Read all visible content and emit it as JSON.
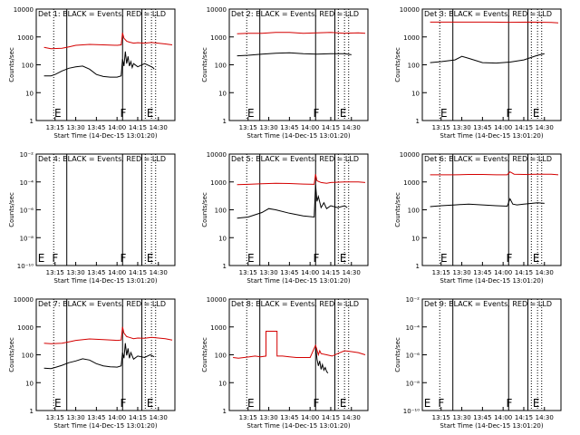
{
  "figure": {
    "xlabel": "Start Time (14-Dec-15 13:01:20)",
    "ylabel": "Counts/sec",
    "xticks": [
      "13:15",
      "13:30",
      "13:45",
      "14:00",
      "14:15",
      "14:30"
    ],
    "colors": {
      "events": "#000000",
      "lld": "#d40000"
    }
  },
  "chart_data": [
    {
      "type": "line",
      "title": "Det 1: BLACK = Events, RED = LLD",
      "yscale": "log",
      "ylim": [
        1,
        10000
      ],
      "yticks": [
        "1",
        "10",
        "100",
        "1000",
        "10000"
      ],
      "xlim": [
        "13:01:20",
        "14:42:00"
      ],
      "solid_lines": [
        "13:23:30",
        "14:04:00",
        "14:18:00"
      ],
      "dotted_lines": [
        "13:14:00",
        "14:20:30",
        "14:25:00",
        "14:28:00"
      ],
      "markers": [
        {
          "label": "E",
          "x": "13:17:00"
        },
        {
          "label": "F",
          "x": "14:04:30"
        },
        {
          "label": "E",
          "x": "14:24:00"
        }
      ],
      "series": [
        {
          "key": "events",
          "x": [
            "13:07",
            "13:12",
            "13:15",
            "13:20",
            "13:25",
            "13:30",
            "13:35",
            "13:40",
            "13:45",
            "13:50",
            "13:55",
            "14:00",
            "14:03",
            "14:04",
            "14:05",
            "14:06",
            "14:07",
            "14:08",
            "14:09",
            "14:10",
            "14:11",
            "14:12",
            "14:15",
            "14:20",
            "14:24",
            "14:26",
            "14:27"
          ],
          "values": [
            40,
            40,
            45,
            60,
            75,
            85,
            90,
            70,
            45,
            38,
            36,
            36,
            40,
            160,
            90,
            300,
            110,
            200,
            90,
            130,
            80,
            110,
            85,
            110,
            90,
            80,
            70
          ]
        },
        {
          "key": "lld",
          "x": [
            "13:07",
            "13:12",
            "13:20",
            "13:25",
            "13:30",
            "13:40",
            "13:50",
            "14:00",
            "14:03",
            "14:04",
            "14:05",
            "14:07",
            "14:09",
            "14:12",
            "14:15",
            "14:20",
            "14:25",
            "14:35",
            "14:40"
          ],
          "values": [
            420,
            380,
            390,
            440,
            500,
            540,
            520,
            500,
            520,
            1400,
            900,
            700,
            650,
            600,
            620,
            600,
            630,
            560,
            520
          ]
        }
      ]
    },
    {
      "type": "line",
      "title": "Det 2: BLACK = Events, RED = LLD",
      "yscale": "log",
      "ylim": [
        1,
        10000
      ],
      "yticks": [
        "1",
        "10",
        "100",
        "1000",
        "10000"
      ],
      "xlim": [
        "13:01:20",
        "14:42:00"
      ],
      "solid_lines": [
        "13:23:30",
        "14:04:00",
        "14:18:00"
      ],
      "dotted_lines": [
        "13:14:00",
        "14:20:30",
        "14:25:00",
        "14:28:00"
      ],
      "markers": [
        {
          "label": "E",
          "x": "13:17:00"
        },
        {
          "label": "F",
          "x": "14:04:30"
        },
        {
          "label": "E",
          "x": "14:24:00"
        }
      ],
      "series": [
        {
          "key": "events",
          "x": [
            "13:07",
            "13:15",
            "13:25",
            "13:35",
            "13:45",
            "13:55",
            "14:05",
            "14:15",
            "14:25",
            "14:30"
          ],
          "values": [
            210,
            220,
            240,
            260,
            270,
            250,
            240,
            250,
            250,
            230
          ]
        },
        {
          "key": "lld",
          "x": [
            "13:07",
            "13:15",
            "13:25",
            "13:35",
            "13:45",
            "13:55",
            "14:05",
            "14:15",
            "14:25",
            "14:35",
            "14:40"
          ],
          "values": [
            1300,
            1350,
            1350,
            1450,
            1450,
            1350,
            1400,
            1450,
            1350,
            1400,
            1350
          ]
        }
      ]
    },
    {
      "type": "line",
      "title": "Det 3: BLACK = Events, RED = LLD",
      "yscale": "log",
      "ylim": [
        1,
        10000
      ],
      "yticks": [
        "1",
        "10",
        "100",
        "1000",
        "10000"
      ],
      "xlim": [
        "13:01:20",
        "14:42:00"
      ],
      "solid_lines": [
        "13:23:30",
        "14:04:00",
        "14:18:00"
      ],
      "dotted_lines": [
        "13:14:00",
        "14:20:30",
        "14:25:00",
        "14:28:00"
      ],
      "markers": [
        {
          "label": "E",
          "x": "13:17:00"
        },
        {
          "label": "F",
          "x": "14:04:30"
        },
        {
          "label": "E",
          "x": "14:24:00"
        }
      ],
      "series": [
        {
          "key": "events",
          "x": [
            "13:07",
            "13:15",
            "13:25",
            "13:30",
            "13:35",
            "13:45",
            "13:55",
            "14:05",
            "14:15",
            "14:25",
            "14:30"
          ],
          "values": [
            120,
            130,
            150,
            200,
            170,
            120,
            115,
            125,
            150,
            220,
            250
          ]
        },
        {
          "key": "lld",
          "x": [
            "13:07",
            "13:20",
            "13:35",
            "13:50",
            "14:05",
            "14:20",
            "14:35",
            "14:40"
          ],
          "values": [
            3400,
            3400,
            3400,
            3400,
            3350,
            3400,
            3300,
            3200
          ]
        }
      ]
    },
    {
      "type": "line",
      "title": "Det 4: BLACK = Events, RED = LLD",
      "yscale": "log",
      "ylim": [
        1e-10,
        0.01
      ],
      "yticks": [
        "10⁻¹⁰",
        "10⁻⁸",
        "10⁻⁶",
        "10⁻⁴",
        "10⁻²"
      ],
      "xlim": [
        "13:01:20",
        "14:42:00"
      ],
      "solid_lines": [
        "13:23:30",
        "14:04:00",
        "14:18:00"
      ],
      "dotted_lines": [
        "13:14:00",
        "14:20:30",
        "14:25:00",
        "14:28:00"
      ],
      "markers": [
        {
          "label": "E",
          "x": "13:05:00"
        },
        {
          "label": "F",
          "x": "13:15:00"
        },
        {
          "label": "F",
          "x": "14:04:30"
        },
        {
          "label": "E",
          "x": "14:24:00"
        }
      ],
      "series": []
    },
    {
      "type": "line",
      "title": "Det 5: BLACK = Events, RED = LLD",
      "yscale": "log",
      "ylim": [
        1,
        10000
      ],
      "yticks": [
        "1",
        "10",
        "100",
        "1000",
        "10000"
      ],
      "xlim": [
        "13:01:20",
        "14:42:00"
      ],
      "solid_lines": [
        "13:23:30",
        "14:04:00",
        "14:18:00"
      ],
      "dotted_lines": [
        "13:14:00",
        "14:20:30",
        "14:25:00",
        "14:28:00"
      ],
      "markers": [
        {
          "label": "E",
          "x": "13:17:00"
        },
        {
          "label": "F",
          "x": "14:04:30"
        },
        {
          "label": "E",
          "x": "14:24:00"
        }
      ],
      "series": [
        {
          "key": "events",
          "x": [
            "13:07",
            "13:15",
            "13:25",
            "13:30",
            "13:35",
            "13:45",
            "13:55",
            "14:03",
            "14:04",
            "14:05",
            "14:06",
            "14:08",
            "14:10",
            "14:12",
            "14:15",
            "14:20",
            "14:25",
            "14:27"
          ],
          "values": [
            50,
            55,
            80,
            110,
            100,
            75,
            60,
            55,
            800,
            200,
            300,
            120,
            180,
            110,
            140,
            120,
            140,
            120
          ]
        },
        {
          "key": "lld",
          "x": [
            "13:07",
            "13:15",
            "13:25",
            "13:35",
            "13:45",
            "13:55",
            "14:03",
            "14:04",
            "14:05",
            "14:08",
            "14:12",
            "14:15",
            "14:25",
            "14:35",
            "14:40"
          ],
          "values": [
            800,
            820,
            860,
            900,
            880,
            840,
            820,
            1900,
            1100,
            950,
            900,
            950,
            1000,
            1000,
            950
          ]
        }
      ]
    },
    {
      "type": "line",
      "title": "Det 6: BLACK = Events, RED = LLD",
      "yscale": "log",
      "ylim": [
        1,
        10000
      ],
      "yticks": [
        "1",
        "10",
        "100",
        "1000",
        "10000"
      ],
      "xlim": [
        "13:01:20",
        "14:42:00"
      ],
      "solid_lines": [
        "13:23:30",
        "14:04:00",
        "14:18:00"
      ],
      "dotted_lines": [
        "13:14:00",
        "14:20:30",
        "14:25:00",
        "14:28:00"
      ],
      "markers": [
        {
          "label": "E",
          "x": "13:17:00"
        },
        {
          "label": "F",
          "x": "14:04:30"
        },
        {
          "label": "E",
          "x": "14:24:00"
        }
      ],
      "series": [
        {
          "key": "events",
          "x": [
            "13:07",
            "13:15",
            "13:25",
            "13:35",
            "13:45",
            "13:55",
            "14:03",
            "14:05",
            "14:07",
            "14:10",
            "14:15",
            "14:25",
            "14:30"
          ],
          "values": [
            130,
            140,
            150,
            160,
            150,
            140,
            135,
            250,
            160,
            150,
            160,
            180,
            170
          ]
        },
        {
          "key": "lld",
          "x": [
            "13:07",
            "13:15",
            "13:25",
            "13:35",
            "13:45",
            "13:55",
            "14:03",
            "14:05",
            "14:08",
            "14:15",
            "14:25",
            "14:35",
            "14:40"
          ],
          "values": [
            1800,
            1800,
            1800,
            1850,
            1850,
            1800,
            1800,
            2300,
            1900,
            1850,
            1900,
            1900,
            1800
          ]
        }
      ]
    },
    {
      "type": "line",
      "title": "Det 7: BLACK = Events, RED = LLD",
      "yscale": "log",
      "ylim": [
        1,
        10000
      ],
      "yticks": [
        "1",
        "10",
        "100",
        "1000",
        "10000"
      ],
      "xlim": [
        "13:01:20",
        "14:42:00"
      ],
      "solid_lines": [
        "13:23:30",
        "14:04:00",
        "14:18:00"
      ],
      "dotted_lines": [
        "13:14:00",
        "14:20:30",
        "14:25:00",
        "14:28:00"
      ],
      "markers": [
        {
          "label": "E",
          "x": "13:17:00"
        },
        {
          "label": "F",
          "x": "14:04:30"
        },
        {
          "label": "E",
          "x": "14:24:00"
        }
      ],
      "series": [
        {
          "key": "events",
          "x": [
            "13:07",
            "13:12",
            "13:15",
            "13:20",
            "13:25",
            "13:30",
            "13:35",
            "13:40",
            "13:45",
            "13:50",
            "13:55",
            "14:00",
            "14:03",
            "14:04",
            "14:05",
            "14:06",
            "14:07",
            "14:08",
            "14:09",
            "14:10",
            "14:12",
            "14:15",
            "14:20",
            "14:24",
            "14:27"
          ],
          "values": [
            33,
            32,
            35,
            42,
            52,
            60,
            72,
            65,
            48,
            40,
            37,
            36,
            40,
            120,
            75,
            260,
            95,
            170,
            75,
            120,
            70,
            90,
            80,
            100,
            85
          ]
        },
        {
          "key": "lld",
          "x": [
            "13:07",
            "13:12",
            "13:20",
            "13:25",
            "13:30",
            "13:40",
            "13:50",
            "14:00",
            "14:03",
            "14:04",
            "14:05",
            "14:07",
            "14:09",
            "14:12",
            "14:15",
            "14:20",
            "14:25",
            "14:35",
            "14:40"
          ],
          "values": [
            260,
            250,
            260,
            290,
            330,
            370,
            350,
            330,
            340,
            1000,
            600,
            450,
            420,
            380,
            400,
            390,
            420,
            380,
            340
          ]
        }
      ]
    },
    {
      "type": "line",
      "title": "Det 8: BLACK = Events, RED = LLD",
      "yscale": "log",
      "ylim": [
        1,
        10000
      ],
      "yticks": [
        "1",
        "10",
        "100",
        "1000",
        "10000"
      ],
      "xlim": [
        "13:01:20",
        "14:42:00"
      ],
      "solid_lines": [
        "13:23:30",
        "14:04:00",
        "14:18:00"
      ],
      "dotted_lines": [
        "13:14:00",
        "14:20:30",
        "14:25:00",
        "14:28:00"
      ],
      "markers": [
        {
          "label": "E",
          "x": "13:17:00"
        },
        {
          "label": "F",
          "x": "14:04:30"
        },
        {
          "label": "E",
          "x": "14:24:00"
        }
      ],
      "series": [
        {
          "key": "events",
          "x": [
            "14:04",
            "14:05",
            "14:06",
            "14:07",
            "14:08",
            "14:09",
            "14:10",
            "14:11",
            "14:12",
            "14:13"
          ],
          "values": [
            220,
            70,
            40,
            60,
            30,
            45,
            28,
            35,
            25,
            22
          ]
        },
        {
          "key": "lld",
          "x": [
            "13:04",
            "13:08",
            "13:12",
            "13:16",
            "13:20",
            "13:24",
            "13:28",
            "13:28",
            "13:36",
            "13:36",
            "13:40",
            "13:45",
            "13:50",
            "13:55",
            "14:00",
            "14:04",
            "14:05",
            "14:06",
            "14:07",
            "14:08",
            "14:12",
            "14:16",
            "14:20",
            "14:25",
            "14:30",
            "14:35",
            "14:40"
          ],
          "values": [
            80,
            75,
            80,
            85,
            90,
            85,
            90,
            700,
            700,
            90,
            90,
            85,
            80,
            80,
            80,
            220,
            150,
            100,
            140,
            110,
            100,
            90,
            110,
            140,
            130,
            120,
            100
          ]
        }
      ]
    },
    {
      "type": "line",
      "title": "Det 9: BLACK = Events, RED = LLD",
      "yscale": "log",
      "ylim": [
        1e-10,
        0.01
      ],
      "yticks": [
        "10⁻¹⁰",
        "10⁻⁸",
        "10⁻⁶",
        "10⁻⁴",
        "10⁻²"
      ],
      "xlim": [
        "13:01:20",
        "14:42:00"
      ],
      "solid_lines": [
        "13:23:30",
        "14:04:00",
        "14:18:00"
      ],
      "dotted_lines": [
        "13:14:00",
        "14:20:30",
        "14:25:00",
        "14:28:00"
      ],
      "markers": [
        {
          "label": "E",
          "x": "13:05:00"
        },
        {
          "label": "F",
          "x": "13:15:00"
        },
        {
          "label": "F",
          "x": "14:04:30"
        },
        {
          "label": "E",
          "x": "14:24:00"
        }
      ],
      "series": []
    }
  ]
}
